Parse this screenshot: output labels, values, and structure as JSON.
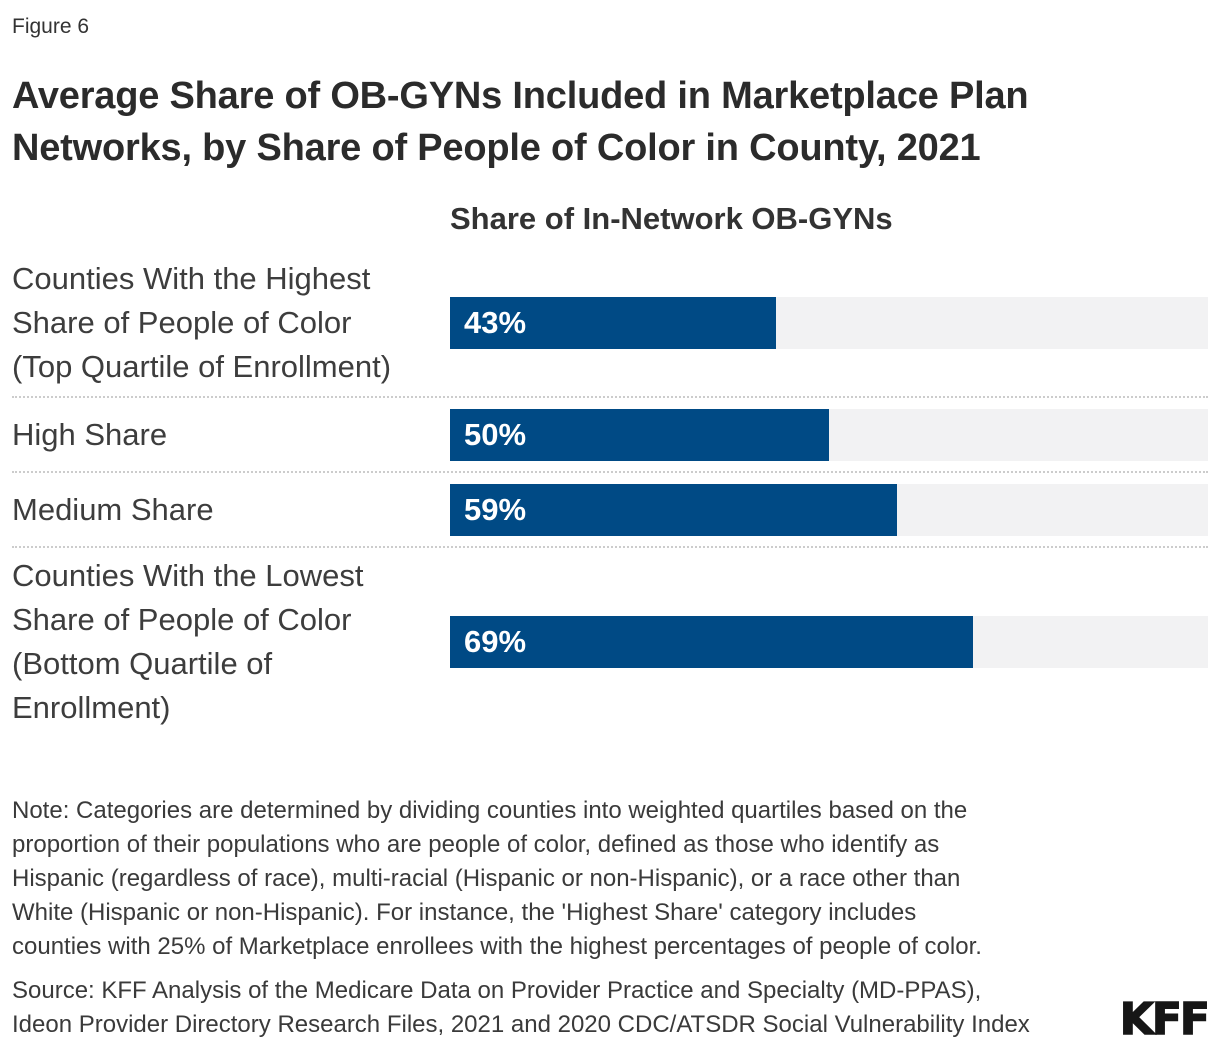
{
  "figure_label": "Figure 6",
  "title": "Average Share of OB-GYNs Included in Marketplace Plan\nNetworks, by Share of People of Color in County, 2021",
  "chart_data": {
    "type": "bar",
    "orientation": "horizontal",
    "title": "Share of In-Network OB-GYNs",
    "categories": [
      "Counties With the Highest\nShare of People of Color\n(Top Quartile of Enrollment)",
      "High Share",
      "Medium Share",
      "Counties With the Lowest\nShare of People of Color\n(Bottom Quartile of\nEnrollment)"
    ],
    "values": [
      43,
      50,
      59,
      69
    ],
    "value_labels": [
      "43%",
      "50%",
      "59%",
      "69%"
    ],
    "xlim": [
      0,
      100
    ],
    "grid": false,
    "legend": false,
    "bar_color": "#004a85",
    "track_color": "#f2f2f3",
    "value_label_color": "#ffffff"
  },
  "note": "Note: Categories are determined by dividing counties into weighted quartiles based on the\nproportion of their populations who are people of color, defined as those who identify as\nHispanic (regardless of race), multi-racial (Hispanic or non-Hispanic), or a race other than\nWhite (Hispanic or non-Hispanic). For instance, the 'Highest Share' category includes\ncounties with 25% of Marketplace enrollees with the highest percentages of people of color.",
  "source": "Source: KFF Analysis of the Medicare Data on Provider Practice and Specialty (MD-PPAS),\nIdeon Provider Directory Research Files, 2021 and 2020 CDC/ATSDR Social Vulnerability Index",
  "logo": "KFF"
}
